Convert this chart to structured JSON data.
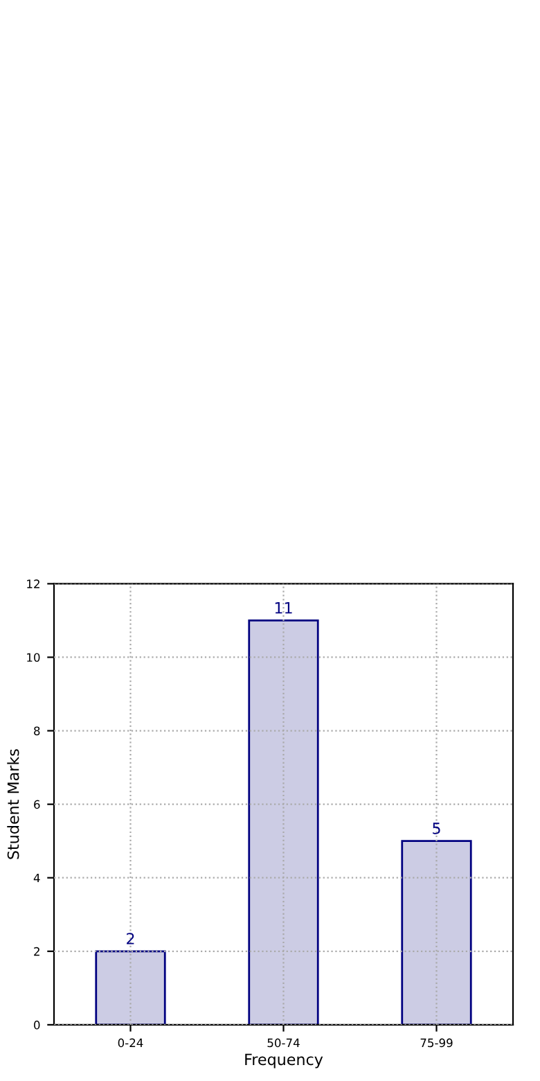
{
  "chart_data": {
    "type": "bar",
    "xlabel": "Frequency",
    "ylabel": "Student Marks",
    "categories": [
      "0-24",
      "50-74",
      "75-99"
    ],
    "series": [
      {
        "color": "#cccce4",
        "values": [
          2,
          11,
          5
        ]
      }
    ],
    "ylim": [
      0,
      12
    ],
    "yticks": [
      0,
      2,
      4,
      6,
      8,
      10,
      12
    ],
    "grid": true,
    "data_labels": true
  }
}
